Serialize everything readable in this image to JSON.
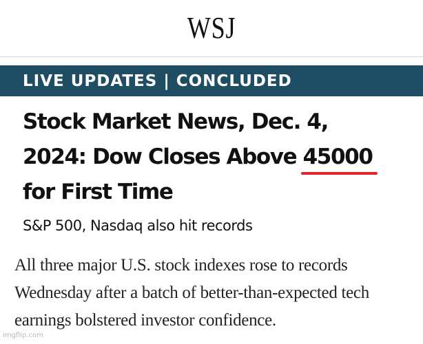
{
  "masthead": {
    "logo": "WSJ"
  },
  "banner": {
    "text": "LIVE UPDATES | CONCLUDED",
    "background_color": "#1f4d63"
  },
  "article": {
    "headline_line1": "Stock Market News, Dec. 4,",
    "headline_line2_prefix": "2024: Dow Closes Above ",
    "headline_highlight": "45000",
    "headline_line3": "for First Time",
    "highlight_underline_color": "#e0262c",
    "dek": "S&P 500, Nasdaq also hit records",
    "body_line1": "All three major U.S. stock indexes rose to records",
    "body_line2": "Wednesday after a batch of better-than-expected tech",
    "body_line3": "earnings bolstered investor confidence."
  },
  "watermark": "imgflip.com"
}
